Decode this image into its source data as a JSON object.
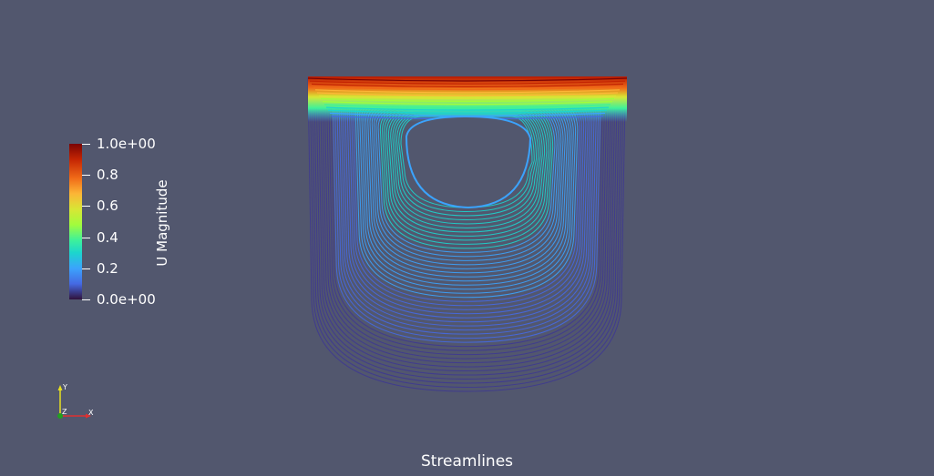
{
  "view_title": "Streamlines",
  "color_legend": {
    "title": "U Magnitude",
    "ticks": [
      "1.0e+00",
      "0.8",
      "0.6",
      "0.4",
      "0.2",
      "0.0e+00"
    ],
    "range": [
      0,
      1
    ]
  },
  "orientation_axes": {
    "x_label": "X",
    "y_label": "Y",
    "z_label": "Z",
    "x_color": "#e03030",
    "y_color": "#e8e020",
    "z_color": "#20a020"
  },
  "colors": {
    "background": "#52576e",
    "text": "#ffffff"
  }
}
